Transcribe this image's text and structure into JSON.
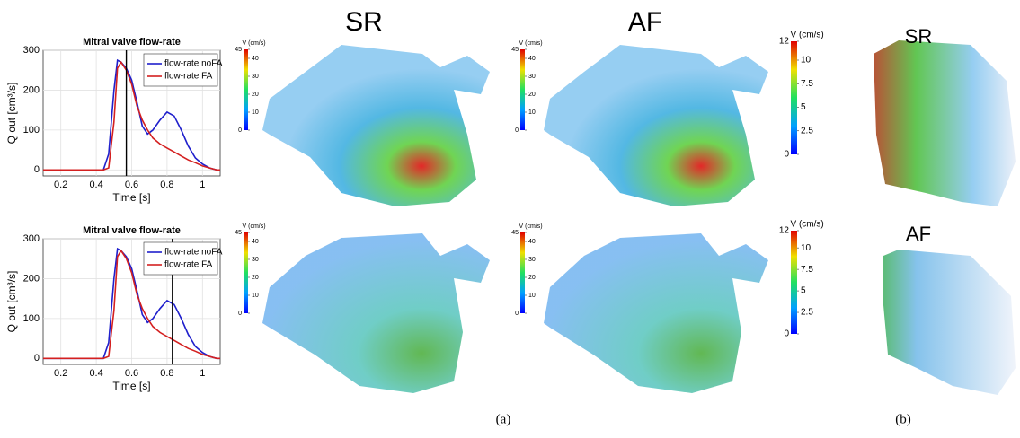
{
  "chart_data": [
    {
      "type": "line",
      "title": "Mitral valve flow-rate",
      "x_label": "Time [s]",
      "y_label": "Q out [cm³/s]",
      "x": [
        0.1,
        0.44,
        0.47,
        0.5,
        0.52,
        0.54,
        0.57,
        0.6,
        0.63,
        0.66,
        0.69,
        0.72,
        0.76,
        0.8,
        0.84,
        0.88,
        0.92,
        0.96,
        1.0,
        1.04,
        1.08,
        1.1
      ],
      "series": [
        {
          "name": "flow-rate noFA",
          "color": "#1f1fcc",
          "values": [
            0,
            0,
            40,
            200,
            275,
            270,
            255,
            225,
            170,
            110,
            90,
            100,
            125,
            145,
            135,
            100,
            60,
            30,
            15,
            5,
            0,
            0
          ]
        },
        {
          "name": "flow-rate FA",
          "color": "#d42020",
          "values": [
            0,
            0,
            5,
            120,
            255,
            270,
            250,
            215,
            160,
            125,
            100,
            80,
            65,
            55,
            45,
            35,
            25,
            18,
            10,
            5,
            0,
            0
          ]
        }
      ],
      "xlim": [
        0.1,
        1.1
      ],
      "xticks": [
        0.2,
        0.4,
        0.6,
        0.8,
        1
      ],
      "ylim": [
        -15,
        300
      ],
      "yticks": [
        0,
        100,
        200,
        300
      ],
      "grid": true,
      "legend": "upper-right",
      "cursor_x": 0.57
    },
    {
      "type": "line",
      "title": "Mitral valve flow-rate",
      "x_label": "Time [s]",
      "y_label": "Q out [cm³/s]",
      "x": [
        0.1,
        0.44,
        0.47,
        0.5,
        0.52,
        0.54,
        0.57,
        0.6,
        0.63,
        0.66,
        0.69,
        0.72,
        0.76,
        0.8,
        0.84,
        0.88,
        0.92,
        0.96,
        1.0,
        1.04,
        1.08,
        1.1
      ],
      "series": [
        {
          "name": "flow-rate noFA",
          "color": "#1f1fcc",
          "values": [
            0,
            0,
            40,
            200,
            275,
            270,
            255,
            225,
            170,
            110,
            90,
            100,
            125,
            145,
            135,
            100,
            60,
            30,
            15,
            5,
            0,
            0
          ]
        },
        {
          "name": "flow-rate FA",
          "color": "#d42020",
          "values": [
            0,
            0,
            5,
            120,
            255,
            270,
            250,
            215,
            160,
            125,
            100,
            80,
            65,
            55,
            45,
            35,
            25,
            18,
            10,
            5,
            0,
            0
          ]
        }
      ],
      "xlim": [
        0.1,
        1.1
      ],
      "xticks": [
        0.2,
        0.4,
        0.6,
        0.8,
        1
      ],
      "ylim": [
        -15,
        300
      ],
      "yticks": [
        0,
        100,
        200,
        300
      ],
      "grid": true,
      "legend": "upper-right",
      "cursor_x": 0.83
    }
  ],
  "headings": [
    "SR",
    "AF",
    "SR",
    "AF"
  ],
  "captions": [
    "(a)",
    "(b)"
  ],
  "colorbars": [
    {
      "title": "V (cm/s)",
      "range": [
        0,
        45
      ],
      "ticks": [
        0,
        10,
        20,
        30,
        40,
        45
      ]
    },
    {
      "title": "V (cm/s)",
      "range": [
        0,
        45
      ],
      "ticks": [
        0,
        10,
        20,
        30,
        40,
        45
      ]
    },
    {
      "title": "V (cm/s)",
      "range": [
        0,
        45
      ],
      "ticks": [
        0,
        10,
        20,
        30,
        40,
        45
      ]
    },
    {
      "title": "V (cm/s)",
      "range": [
        0,
        45
      ],
      "ticks": [
        0,
        10,
        20,
        30,
        40,
        45
      ]
    },
    {
      "title": "V (cm/s)",
      "range": [
        0,
        12
      ],
      "ticks": [
        0,
        2.5,
        5,
        7.5,
        10,
        12
      ]
    },
    {
      "title": "V (cm/s)",
      "range": [
        0,
        12
      ],
      "ticks": [
        0,
        2.5,
        5,
        7.5,
        10,
        12
      ]
    }
  ]
}
